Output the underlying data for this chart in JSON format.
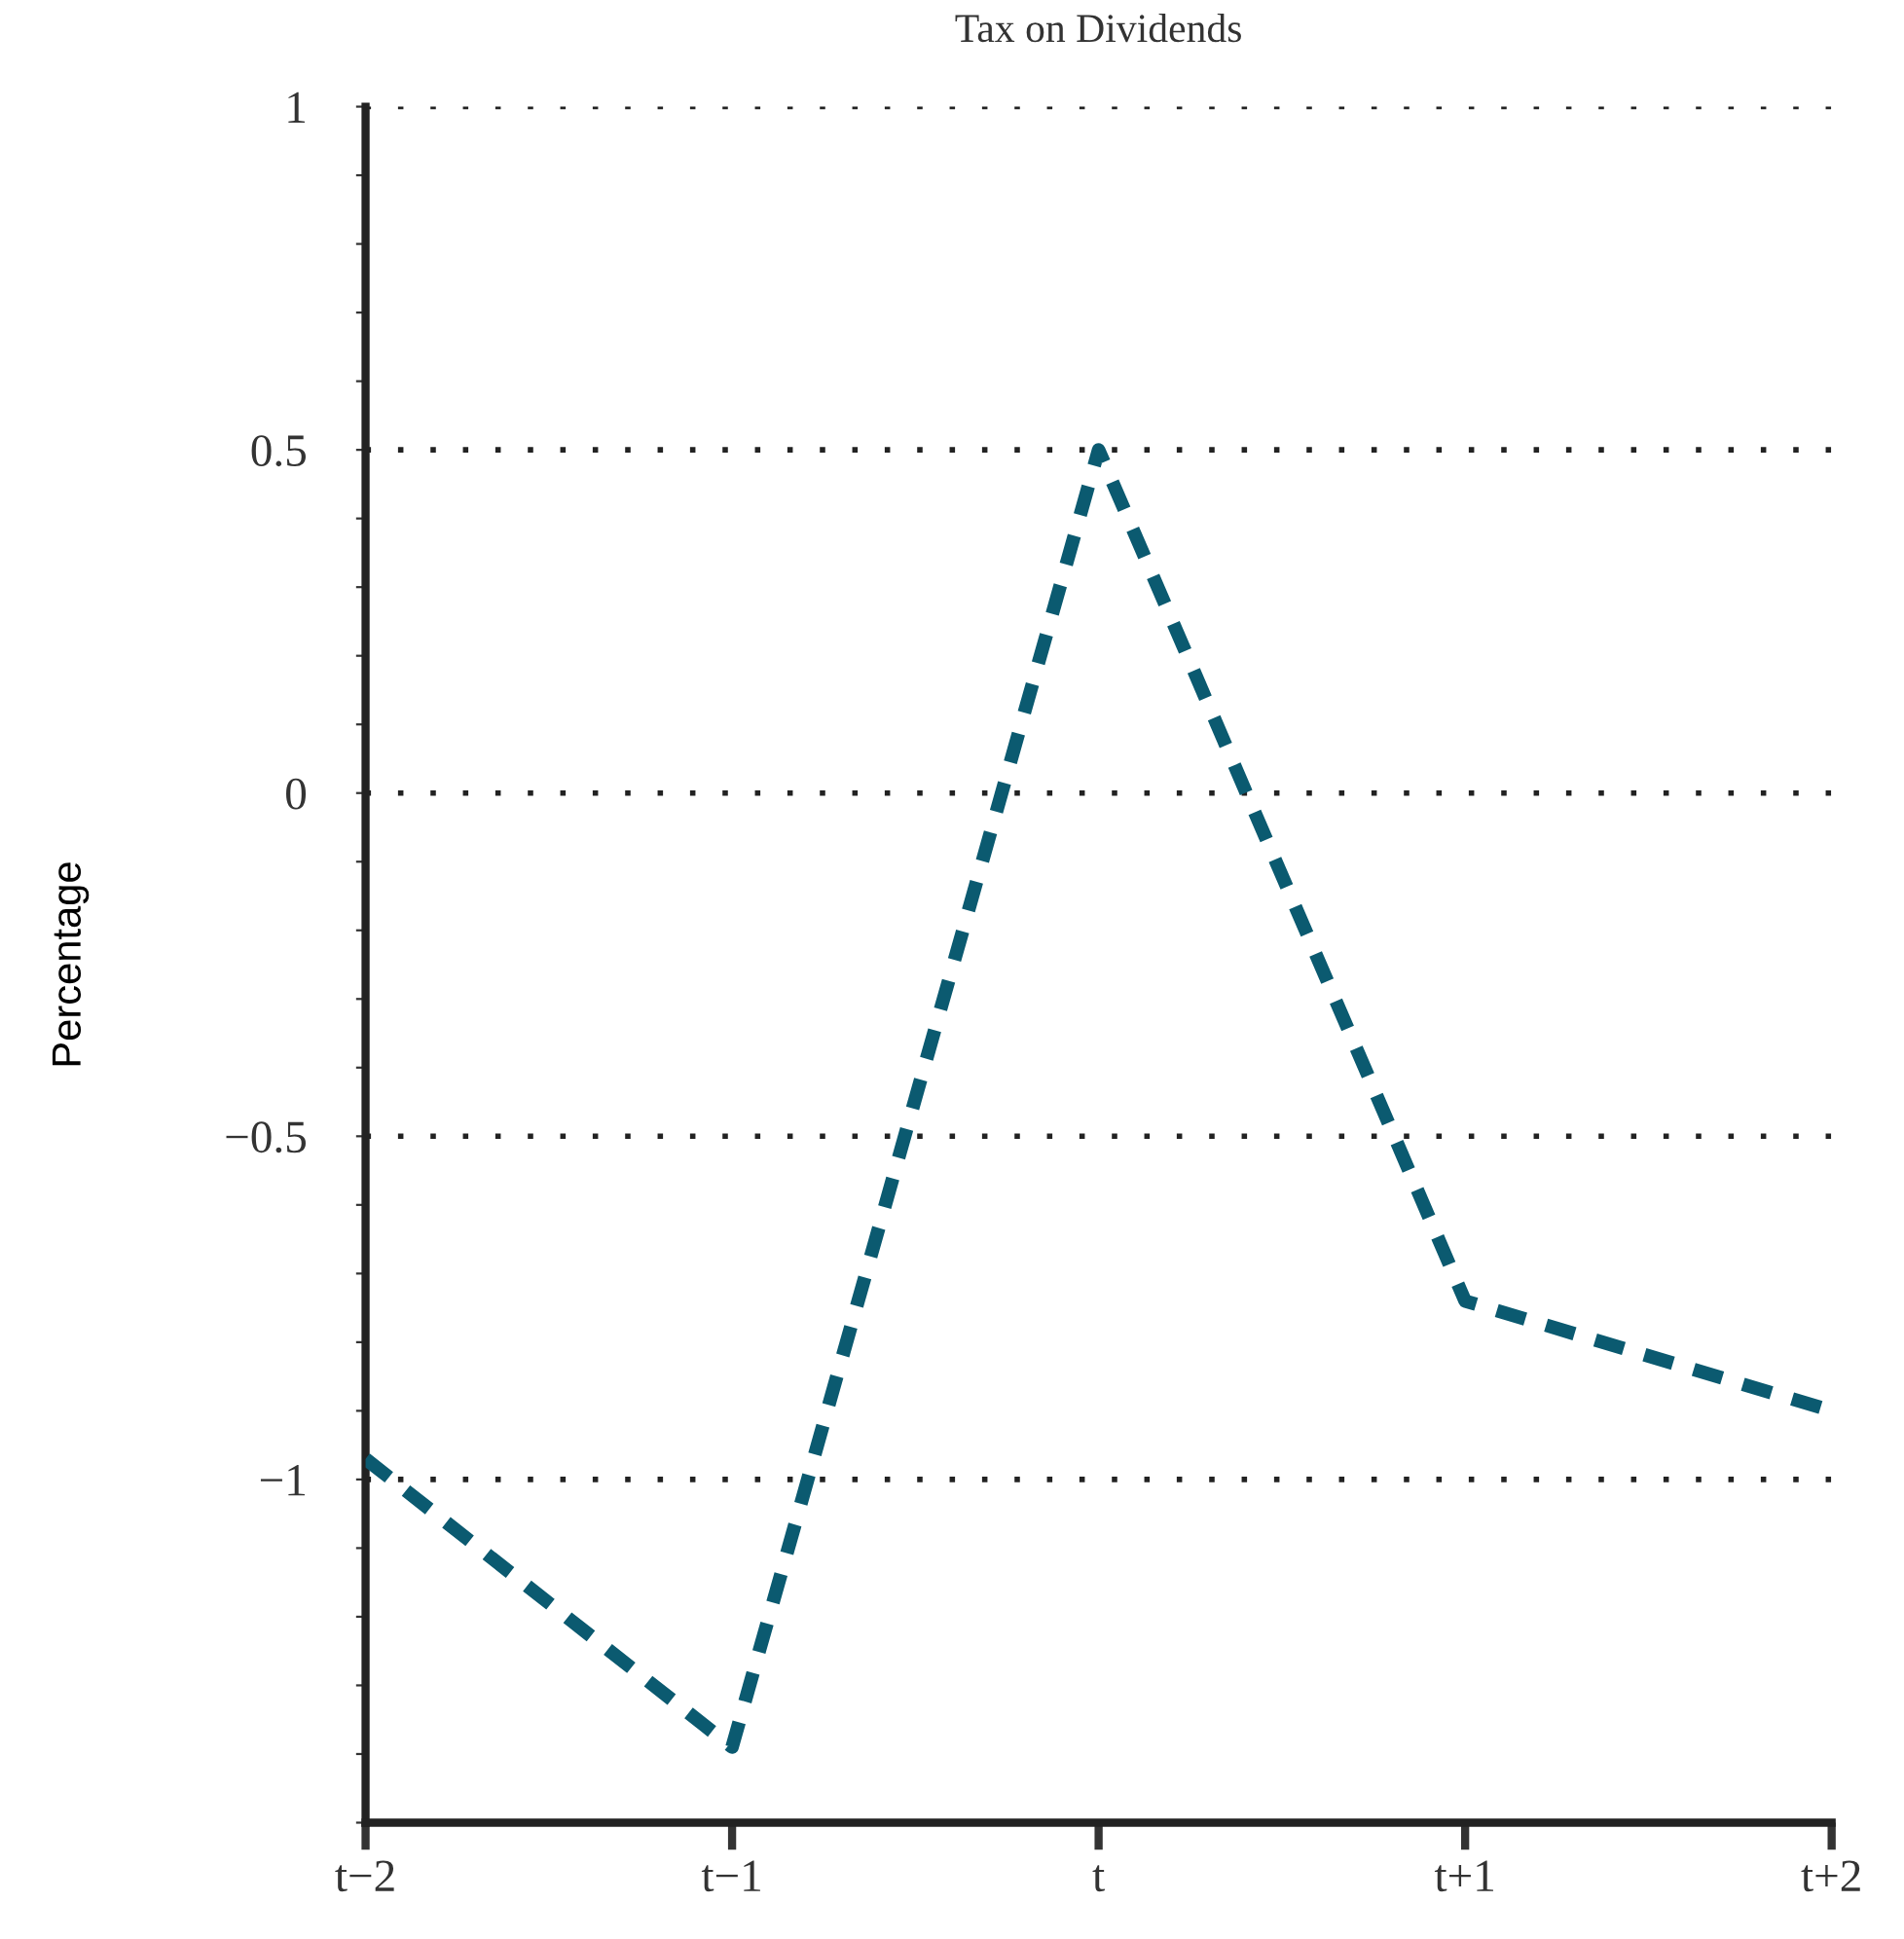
{
  "chart_data": {
    "type": "line",
    "title": "Tax on Dividends",
    "ylabel": "Percentage",
    "categories": [
      "t−2",
      "t−1",
      "t",
      "t+1",
      "t+2"
    ],
    "series": [
      {
        "color": "#0b5a70",
        "values": [
          -0.97,
          -1.39,
          0.5,
          -0.74,
          -0.9
        ]
      }
    ],
    "ylim": [
      -1.5,
      1
    ],
    "yticks": [
      {
        "value": -1.5,
        "label": null
      },
      {
        "value": -1.4,
        "label": null
      },
      {
        "value": -1.3,
        "label": null
      },
      {
        "value": -1.2,
        "label": null
      },
      {
        "value": -1.1,
        "label": null
      },
      -1,
      {
        "value": -0.9,
        "label": null
      },
      {
        "value": -0.8,
        "label": null
      },
      {
        "value": -0.7,
        "label": null
      },
      {
        "value": -0.6,
        "label": null
      },
      {
        "value": -0.5,
        "label": "−0.5"
      },
      {
        "value": -0.4,
        "label": null
      },
      {
        "value": -0.3,
        "label": null
      },
      {
        "value": -0.2,
        "label": null
      },
      {
        "value": -0.1,
        "label": null
      },
      0,
      {
        "value": 0.1,
        "label": null
      },
      {
        "value": 0.2,
        "label": null
      },
      {
        "value": 0.3,
        "label": null
      },
      {
        "value": 0.4,
        "label": null
      },
      0.5,
      {
        "value": 0.6,
        "label": null
      },
      {
        "value": 0.7,
        "label": null
      },
      {
        "value": 0.8,
        "label": null
      },
      {
        "value": 0.9,
        "label": null
      },
      1
    ],
    "grid": "y",
    "line_style": "dashed",
    "marker": "none"
  }
}
